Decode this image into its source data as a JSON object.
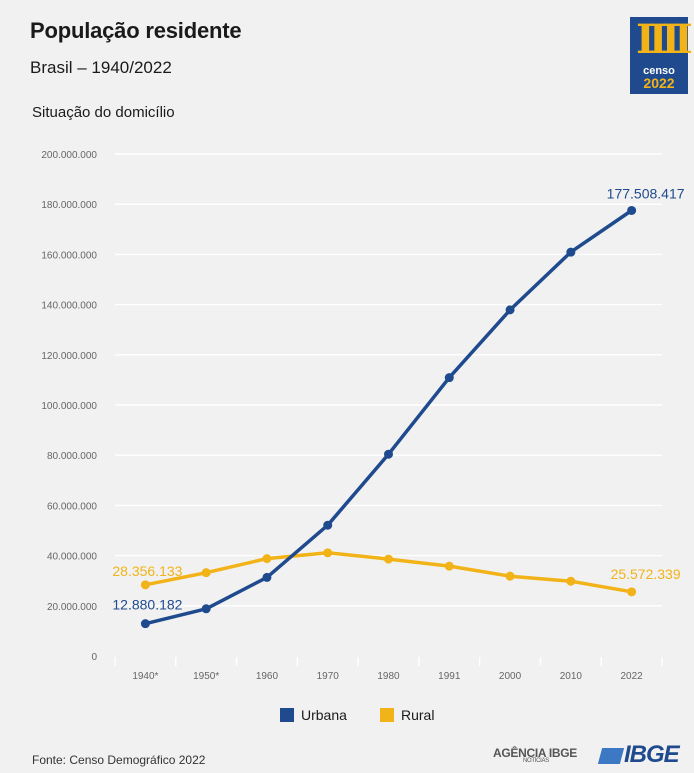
{
  "header": {
    "title": "População residente",
    "subtitle": "Brasil – 1940/2022",
    "section": "Situação do domicílio"
  },
  "logo": {
    "word": "censo",
    "year": "2022",
    "mark": "IIII"
  },
  "footer": {
    "source": "Fonte: Censo Demográfico 2022",
    "agencia": "AGÊNCIA IBGE",
    "agencia_sub": "NOTÍCIAS",
    "ibge": "IBGE"
  },
  "colors": {
    "urbana": "#1f4a8e",
    "rural": "#f2b318",
    "grid": "#ffffff",
    "background": "#f1f1f1",
    "tick": "#666666"
  },
  "chart_data": {
    "type": "line",
    "categories": [
      "1940*",
      "1950*",
      "1960",
      "1970",
      "1980",
      "1991",
      "2000",
      "2010",
      "2022"
    ],
    "ylim": [
      0,
      200000000
    ],
    "yticks": [
      {
        "value": 0,
        "label": "0"
      },
      {
        "value": 20000000,
        "label": "20.000.000"
      },
      {
        "value": 40000000,
        "label": "40.000.000"
      },
      {
        "value": 60000000,
        "label": "60.000.000"
      },
      {
        "value": 80000000,
        "label": "80.000.000"
      },
      {
        "value": 100000000,
        "label": "100.000.000"
      },
      {
        "value": 120000000,
        "label": "120.000.000"
      },
      {
        "value": 140000000,
        "label": "140.000.000"
      },
      {
        "value": 160000000,
        "label": "160.000.000"
      },
      {
        "value": 180000000,
        "label": "180.000.000"
      },
      {
        "value": 200000000,
        "label": "200.000.000"
      }
    ],
    "grid": true,
    "legend_position": "bottom",
    "series": [
      {
        "name": "Urbana",
        "color": "#1f4a8e",
        "values": [
          12880182,
          18800000,
          31300000,
          52100000,
          80400000,
          110900000,
          137900000,
          160900000,
          177508417
        ]
      },
      {
        "name": "Rural",
        "color": "#f2b318",
        "values": [
          28356133,
          33200000,
          38800000,
          41100000,
          38600000,
          35800000,
          31800000,
          29800000,
          25572339
        ]
      }
    ],
    "annotations": [
      {
        "series": 0,
        "index": 0,
        "text": "12.880.182"
      },
      {
        "series": 0,
        "index": 8,
        "text": "177.508.417"
      },
      {
        "series": 1,
        "index": 0,
        "text": "28.356.133"
      },
      {
        "series": 1,
        "index": 8,
        "text": "25.572.339"
      }
    ]
  }
}
